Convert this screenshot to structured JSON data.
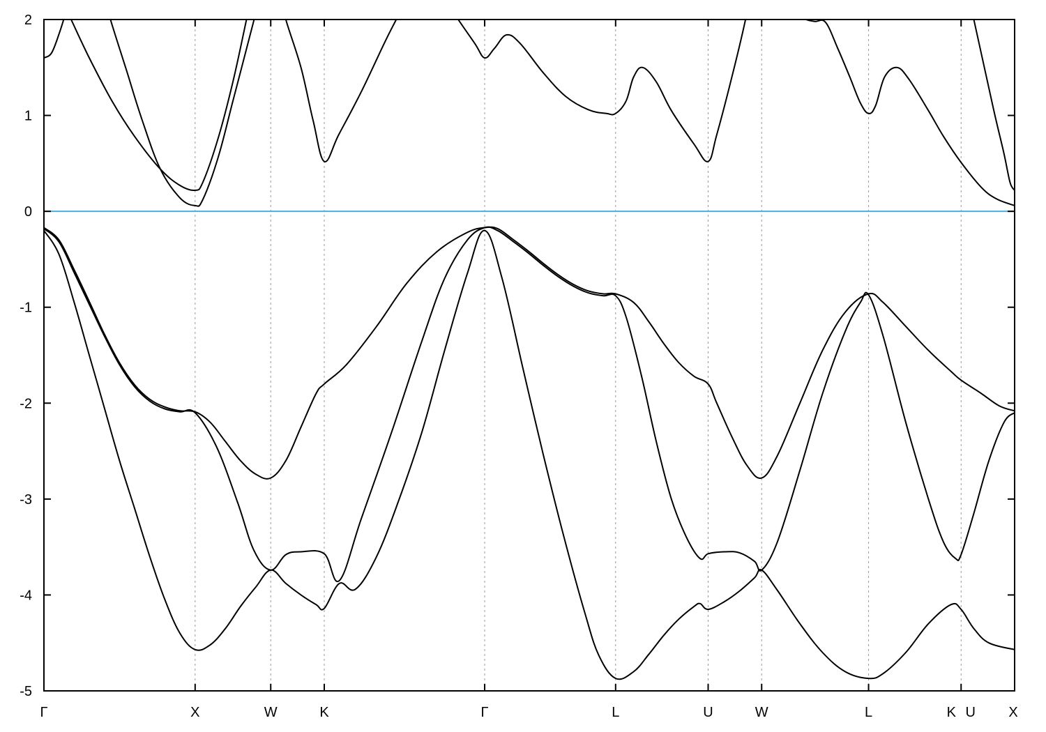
{
  "chart_data": {
    "type": "line",
    "title": "",
    "xlabel": "",
    "ylabel": "",
    "ylim": [
      -5,
      2
    ],
    "xlim": [
      0,
      6.42
    ],
    "grid": "vertical dashed lines at high-symmetry points",
    "legend": "none",
    "yticks": [
      {
        "value": 2,
        "label": "2"
      },
      {
        "value": 1,
        "label": "1"
      },
      {
        "value": 0,
        "label": "0"
      },
      {
        "value": -1,
        "label": "-1"
      },
      {
        "value": -2,
        "label": "-2"
      },
      {
        "value": -3,
        "label": "-3"
      },
      {
        "value": -4,
        "label": "-4"
      },
      {
        "value": -5,
        "label": "-5"
      }
    ],
    "xticks": [
      {
        "k": 0,
        "label": "Γ"
      },
      {
        "k": 1.0,
        "label": "X"
      },
      {
        "k": 1.5,
        "label": "W"
      },
      {
        "k": 1.854,
        "label": "K"
      },
      {
        "k": 2.915,
        "label": "Γ"
      },
      {
        "k": 3.781,
        "label": "L"
      },
      {
        "k": 4.393,
        "label": "U"
      },
      {
        "k": 4.747,
        "label": "W"
      },
      {
        "k": 5.454,
        "label": "L"
      },
      {
        "k": 6.066,
        "label": "K U"
      },
      {
        "k": 6.42,
        "label": "X"
      }
    ],
    "fermi_level": 0,
    "colors": {
      "bands": "#000000",
      "fermi_line": "#4aaee0",
      "grid": "#999999"
    },
    "series": [
      {
        "points": [
          [
            0,
            -0.2
          ],
          [
            0.1,
            -0.45
          ],
          [
            0.2,
            -0.95
          ],
          [
            0.3,
            -1.5
          ],
          [
            0.4,
            -2.05
          ],
          [
            0.5,
            -2.6
          ],
          [
            0.6,
            -3.1
          ],
          [
            0.7,
            -3.6
          ],
          [
            0.8,
            -4.05
          ],
          [
            0.9,
            -4.4
          ],
          [
            1.0,
            -4.57
          ],
          [
            1.1,
            -4.52
          ],
          [
            1.2,
            -4.35
          ],
          [
            1.3,
            -4.12
          ],
          [
            1.4,
            -3.92
          ],
          [
            1.5,
            -3.74
          ],
          [
            1.6,
            -3.88
          ],
          [
            1.7,
            -4.0
          ],
          [
            1.8,
            -4.1
          ],
          [
            1.854,
            -4.14
          ],
          [
            1.954,
            -3.88
          ],
          [
            2.06,
            -3.94
          ],
          [
            2.2,
            -3.6
          ],
          [
            2.35,
            -3.0
          ],
          [
            2.5,
            -2.3
          ],
          [
            2.65,
            -1.45
          ],
          [
            2.8,
            -0.65
          ],
          [
            2.915,
            -0.2
          ],
          [
            3.03,
            -0.7
          ],
          [
            3.17,
            -1.65
          ],
          [
            3.3,
            -2.52
          ],
          [
            3.44,
            -3.4
          ],
          [
            3.58,
            -4.2
          ],
          [
            3.67,
            -4.63
          ],
          [
            3.781,
            -4.87
          ],
          [
            3.9,
            -4.8
          ],
          [
            4.0,
            -4.62
          ],
          [
            4.1,
            -4.42
          ],
          [
            4.2,
            -4.25
          ],
          [
            4.3,
            -4.12
          ],
          [
            4.34,
            -4.09
          ],
          [
            4.393,
            -4.15
          ],
          [
            4.5,
            -4.07
          ],
          [
            4.6,
            -3.96
          ],
          [
            4.7,
            -3.82
          ],
          [
            4.747,
            -3.74
          ],
          [
            4.85,
            -3.95
          ],
          [
            5.0,
            -4.3
          ],
          [
            5.15,
            -4.6
          ],
          [
            5.3,
            -4.8
          ],
          [
            5.454,
            -4.87
          ],
          [
            5.55,
            -4.82
          ],
          [
            5.7,
            -4.6
          ],
          [
            5.85,
            -4.3
          ],
          [
            6.0,
            -4.1
          ],
          [
            6.066,
            -4.15
          ],
          [
            6.15,
            -4.35
          ],
          [
            6.25,
            -4.5
          ],
          [
            6.42,
            -4.57
          ]
        ]
      },
      {
        "points": [
          [
            0,
            -0.18
          ],
          [
            0.1,
            -0.32
          ],
          [
            0.2,
            -0.64
          ],
          [
            0.3,
            -0.97
          ],
          [
            0.4,
            -1.3
          ],
          [
            0.5,
            -1.6
          ],
          [
            0.6,
            -1.83
          ],
          [
            0.7,
            -1.98
          ],
          [
            0.8,
            -2.06
          ],
          [
            0.9,
            -2.09
          ],
          [
            1.0,
            -2.1
          ],
          [
            1.14,
            -2.45
          ],
          [
            1.28,
            -3.03
          ],
          [
            1.39,
            -3.54
          ],
          [
            1.5,
            -3.74
          ],
          [
            1.6,
            -3.58
          ],
          [
            1.7,
            -3.55
          ],
          [
            1.854,
            -3.57
          ],
          [
            1.954,
            -3.85
          ],
          [
            2.1,
            -3.2
          ],
          [
            2.3,
            -2.3
          ],
          [
            2.5,
            -1.35
          ],
          [
            2.65,
            -0.7
          ],
          [
            2.8,
            -0.3
          ],
          [
            2.915,
            -0.17
          ],
          [
            3.0,
            -0.2
          ],
          [
            3.1,
            -0.31
          ],
          [
            3.2,
            -0.43
          ],
          [
            3.3,
            -0.56
          ],
          [
            3.4,
            -0.68
          ],
          [
            3.5,
            -0.78
          ],
          [
            3.6,
            -0.85
          ],
          [
            3.7,
            -0.88
          ],
          [
            3.781,
            -0.88
          ],
          [
            3.85,
            -1.1
          ],
          [
            3.95,
            -1.7
          ],
          [
            4.05,
            -2.4
          ],
          [
            4.15,
            -3.0
          ],
          [
            4.25,
            -3.4
          ],
          [
            4.34,
            -3.62
          ],
          [
            4.393,
            -3.57
          ],
          [
            4.5,
            -3.55
          ],
          [
            4.6,
            -3.56
          ],
          [
            4.7,
            -3.65
          ],
          [
            4.747,
            -3.74
          ],
          [
            4.85,
            -3.45
          ],
          [
            5.0,
            -2.7
          ],
          [
            5.15,
            -1.9
          ],
          [
            5.3,
            -1.25
          ],
          [
            5.4,
            -0.95
          ],
          [
            5.454,
            -0.87
          ],
          [
            5.55,
            -1.3
          ],
          [
            5.7,
            -2.2
          ],
          [
            5.85,
            -3.0
          ],
          [
            5.95,
            -3.45
          ],
          [
            6.03,
            -3.62
          ],
          [
            6.066,
            -3.58
          ],
          [
            6.15,
            -3.15
          ],
          [
            6.25,
            -2.6
          ],
          [
            6.35,
            -2.2
          ],
          [
            6.42,
            -2.1
          ]
        ]
      },
      {
        "points": [
          [
            0,
            -0.17
          ],
          [
            0.1,
            -0.3
          ],
          [
            0.2,
            -0.61
          ],
          [
            0.3,
            -0.94
          ],
          [
            0.4,
            -1.28
          ],
          [
            0.5,
            -1.58
          ],
          [
            0.6,
            -1.81
          ],
          [
            0.7,
            -1.96
          ],
          [
            0.8,
            -2.04
          ],
          [
            0.9,
            -2.08
          ],
          [
            1.0,
            -2.09
          ],
          [
            1.1,
            -2.2
          ],
          [
            1.2,
            -2.4
          ],
          [
            1.3,
            -2.6
          ],
          [
            1.4,
            -2.74
          ],
          [
            1.5,
            -2.78
          ],
          [
            1.6,
            -2.6
          ],
          [
            1.7,
            -2.25
          ],
          [
            1.8,
            -1.9
          ],
          [
            1.854,
            -1.8
          ],
          [
            2.0,
            -1.6
          ],
          [
            2.2,
            -1.2
          ],
          [
            2.4,
            -0.75
          ],
          [
            2.6,
            -0.42
          ],
          [
            2.8,
            -0.22
          ],
          [
            2.915,
            -0.17
          ],
          [
            3.0,
            -0.18
          ],
          [
            3.1,
            -0.29
          ],
          [
            3.2,
            -0.41
          ],
          [
            3.3,
            -0.54
          ],
          [
            3.4,
            -0.66
          ],
          [
            3.5,
            -0.76
          ],
          [
            3.6,
            -0.83
          ],
          [
            3.7,
            -0.86
          ],
          [
            3.781,
            -0.86
          ],
          [
            3.9,
            -0.95
          ],
          [
            4.0,
            -1.15
          ],
          [
            4.1,
            -1.38
          ],
          [
            4.2,
            -1.58
          ],
          [
            4.3,
            -1.72
          ],
          [
            4.393,
            -1.8
          ],
          [
            4.45,
            -2.0
          ],
          [
            4.55,
            -2.35
          ],
          [
            4.65,
            -2.65
          ],
          [
            4.747,
            -2.78
          ],
          [
            4.85,
            -2.55
          ],
          [
            5.0,
            -2.0
          ],
          [
            5.15,
            -1.45
          ],
          [
            5.3,
            -1.05
          ],
          [
            5.454,
            -0.86
          ],
          [
            5.55,
            -0.95
          ],
          [
            5.7,
            -1.2
          ],
          [
            5.85,
            -1.45
          ],
          [
            6.0,
            -1.67
          ],
          [
            6.066,
            -1.76
          ],
          [
            6.2,
            -1.9
          ],
          [
            6.32,
            -2.03
          ],
          [
            6.42,
            -2.08
          ]
        ]
      },
      {
        "points": [
          [
            0,
            1.6
          ],
          [
            0.05,
            1.65
          ],
          [
            0.1,
            1.85
          ],
          [
            0.15,
            2.1
          ]
        ]
      },
      {
        "points": [
          [
            0.15,
            2.1
          ],
          [
            0.18,
            2.0
          ],
          [
            0.3,
            1.6
          ],
          [
            0.45,
            1.15
          ],
          [
            0.6,
            0.78
          ],
          [
            0.77,
            0.44
          ],
          [
            0.9,
            0.27
          ],
          [
            1.0,
            0.22
          ],
          [
            1.05,
            0.3
          ],
          [
            1.15,
            0.75
          ],
          [
            1.25,
            1.35
          ],
          [
            1.34,
            2.0
          ],
          [
            1.37,
            2.2
          ]
        ]
      },
      {
        "points": [
          [
            0.41,
            2.2
          ],
          [
            0.44,
            2.0
          ],
          [
            0.55,
            1.45
          ],
          [
            0.65,
            0.95
          ],
          [
            0.77,
            0.44
          ],
          [
            0.9,
            0.14
          ],
          [
            1.0,
            0.06
          ],
          [
            1.05,
            0.12
          ],
          [
            1.15,
            0.55
          ],
          [
            1.25,
            1.15
          ],
          [
            1.39,
            2.0
          ],
          [
            1.42,
            2.2
          ]
        ]
      },
      {
        "points": [
          [
            1.58,
            2.2
          ],
          [
            1.6,
            2.0
          ],
          [
            1.7,
            1.5
          ],
          [
            1.78,
            0.95
          ],
          [
            1.854,
            0.52
          ],
          [
            1.95,
            0.8
          ],
          [
            2.1,
            1.25
          ],
          [
            2.25,
            1.75
          ],
          [
            2.33,
            2.0
          ],
          [
            2.36,
            2.1
          ]
        ]
      },
      {
        "points": [
          [
            2.7,
            2.1
          ],
          [
            2.74,
            2.0
          ],
          [
            2.85,
            1.75
          ],
          [
            2.915,
            1.6
          ],
          [
            2.98,
            1.7
          ],
          [
            3.06,
            1.84
          ],
          [
            3.15,
            1.75
          ],
          [
            3.3,
            1.45
          ],
          [
            3.45,
            1.2
          ],
          [
            3.6,
            1.06
          ],
          [
            3.72,
            1.02
          ],
          [
            3.781,
            1.02
          ],
          [
            3.85,
            1.15
          ],
          [
            3.9,
            1.4
          ],
          [
            3.96,
            1.5
          ],
          [
            4.05,
            1.35
          ],
          [
            4.15,
            1.05
          ],
          [
            4.3,
            0.7
          ],
          [
            4.393,
            0.52
          ],
          [
            4.45,
            0.8
          ],
          [
            4.55,
            1.4
          ],
          [
            4.64,
            2.0
          ],
          [
            4.66,
            2.2
          ]
        ]
      },
      {
        "points": [
          [
            5.0,
            2.05
          ],
          [
            5.04,
            2.0
          ],
          [
            5.1,
            1.98
          ],
          [
            5.17,
            1.97
          ],
          [
            5.25,
            1.7
          ],
          [
            5.33,
            1.4
          ],
          [
            5.4,
            1.13
          ],
          [
            5.454,
            1.02
          ],
          [
            5.5,
            1.1
          ],
          [
            5.56,
            1.4
          ],
          [
            5.64,
            1.5
          ],
          [
            5.72,
            1.38
          ],
          [
            5.85,
            1.05
          ],
          [
            5.95,
            0.78
          ],
          [
            6.066,
            0.51
          ],
          [
            6.2,
            0.25
          ],
          [
            6.3,
            0.13
          ],
          [
            6.42,
            0.06
          ]
        ]
      },
      {
        "points": [
          [
            6.14,
            2.1
          ],
          [
            6.15,
            2.0
          ],
          [
            6.22,
            1.5
          ],
          [
            6.29,
            1.0
          ],
          [
            6.35,
            0.6
          ],
          [
            6.39,
            0.3
          ],
          [
            6.42,
            0.22
          ]
        ]
      }
    ]
  }
}
